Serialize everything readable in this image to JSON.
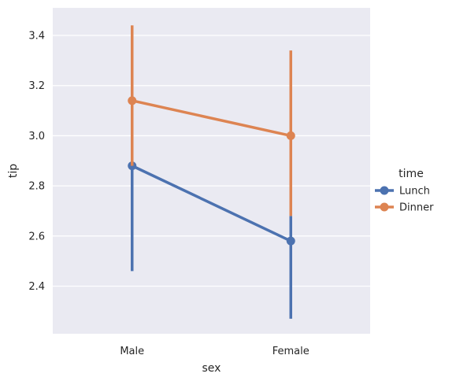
{
  "chart_data": {
    "type": "line",
    "categories": [
      "Male",
      "Female"
    ],
    "xlabel": "sex",
    "ylabel": "tip",
    "ylim": [
      2.21,
      3.51
    ],
    "yticks": [
      2.4,
      2.6,
      2.8,
      3.0,
      3.2,
      3.4
    ],
    "grid": true,
    "legend": {
      "title": "time",
      "placement": "right"
    },
    "series": [
      {
        "name": "Lunch",
        "color": "#4c72b0",
        "values": [
          2.88,
          2.58
        ],
        "ci_low": [
          2.46,
          2.27
        ],
        "ci_high": [
          2.88,
          2.68
        ]
      },
      {
        "name": "Dinner",
        "color": "#dd8452",
        "values": [
          3.14,
          3.0
        ],
        "ci_low": [
          2.88,
          2.68
        ],
        "ci_high": [
          3.44,
          3.34
        ]
      }
    ]
  }
}
